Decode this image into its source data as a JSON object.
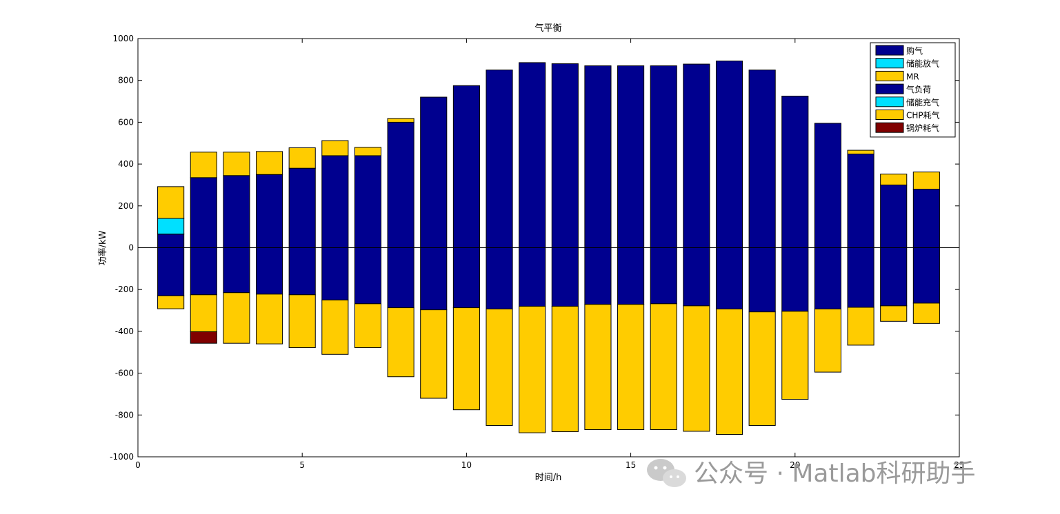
{
  "chart_data": {
    "type": "bar",
    "title": "气平衡",
    "xlabel": "时间/h",
    "ylabel": "功率/kW",
    "xlim": [
      0,
      25
    ],
    "ylim": [
      -1000,
      1000
    ],
    "xticks": [
      "0",
      "5",
      "10",
      "15",
      "20",
      "25"
    ],
    "yticks": [
      "-1000",
      "-800",
      "-600",
      "-400",
      "-200",
      "0",
      "200",
      "400",
      "600",
      "800",
      "1000"
    ],
    "x": [
      1,
      2,
      3,
      4,
      5,
      6,
      7,
      8,
      9,
      10,
      11,
      12,
      13,
      14,
      15,
      16,
      17,
      18,
      19,
      20,
      21,
      22,
      23,
      24
    ],
    "positive_series": [
      {
        "name": "购气",
        "color": "#00008F",
        "values": [
          65,
          335,
          345,
          350,
          380,
          440,
          440,
          600,
          720,
          775,
          850,
          885,
          880,
          870,
          870,
          870,
          878,
          893,
          850,
          725,
          595,
          448,
          300,
          280
        ]
      },
      {
        "name": "储能放气",
        "color": "#00E0FF",
        "values": [
          75,
          0,
          0,
          0,
          0,
          0,
          0,
          0,
          0,
          0,
          0,
          0,
          0,
          0,
          0,
          0,
          0,
          0,
          0,
          0,
          0,
          0,
          0,
          0
        ]
      },
      {
        "name": "MR",
        "color": "#FFCC00",
        "values": [
          152,
          122,
          112,
          110,
          98,
          72,
          40,
          18,
          0,
          0,
          0,
          0,
          0,
          0,
          0,
          0,
          0,
          0,
          0,
          0,
          0,
          18,
          52,
          82
        ]
      }
    ],
    "negative_series": [
      {
        "name": "气负荷",
        "color": "#00008F",
        "values": [
          -230,
          -225,
          -215,
          -222,
          -225,
          -250,
          -268,
          -287,
          -297,
          -287,
          -293,
          -280,
          -280,
          -271,
          -271,
          -268,
          -278,
          -293,
          -307,
          -304,
          -293,
          -285,
          -278,
          -265
        ]
      },
      {
        "name": "储能充气",
        "color": "#00E0FF",
        "values": [
          0,
          0,
          0,
          0,
          0,
          0,
          0,
          0,
          0,
          0,
          0,
          0,
          0,
          0,
          0,
          0,
          0,
          0,
          0,
          0,
          0,
          0,
          0,
          0
        ]
      },
      {
        "name": "CHP耗气",
        "color": "#FFCC00",
        "values": [
          -62,
          -177,
          -242,
          -238,
          -253,
          -260,
          -210,
          -330,
          -423,
          -488,
          -557,
          -605,
          -600,
          -599,
          -599,
          -602,
          -600,
          -600,
          -543,
          -421,
          -302,
          -181,
          -74,
          -97
        ]
      },
      {
        "name": "锅炉耗气",
        "color": "#800000",
        "values": [
          0,
          -55,
          0,
          0,
          0,
          0,
          0,
          0,
          0,
          0,
          0,
          0,
          0,
          0,
          0,
          0,
          0,
          0,
          0,
          0,
          0,
          0,
          0,
          0
        ]
      }
    ],
    "legend": [
      "购气",
      "储能放气",
      "MR",
      "气负荷",
      "储能充气",
      "CHP耗气",
      "锅炉耗气"
    ],
    "legend_colors": [
      "#00008F",
      "#00E0FF",
      "#FFCC00",
      "#00008F",
      "#00E0FF",
      "#FFCC00",
      "#800000"
    ],
    "legend_position": "top-right",
    "grid": false
  },
  "watermark": {
    "icon": "wechat-icon",
    "text": "公众号 · Matlab科研助手"
  }
}
